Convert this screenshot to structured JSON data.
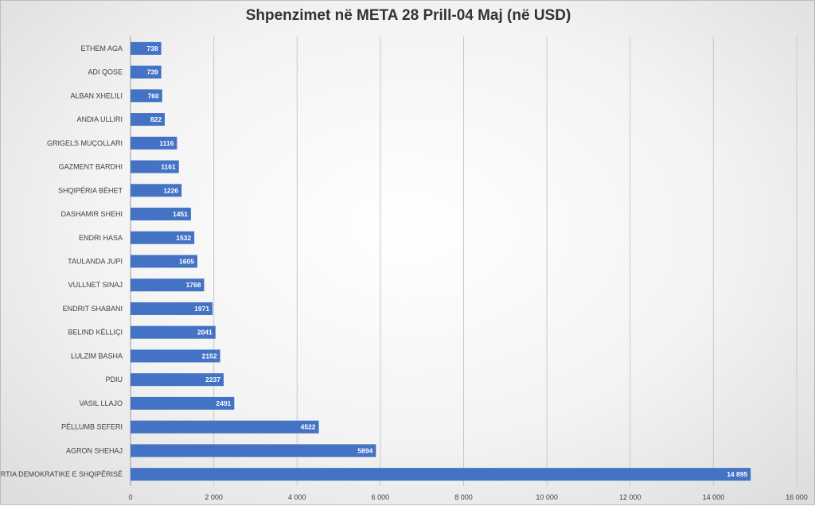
{
  "chart_data": {
    "type": "bar",
    "orientation": "horizontal",
    "title": "Shpenzimet në META 28 Prill-04 Maj (në USD)",
    "categories": [
      "ETHEM AGA",
      "ADI QOSE",
      "ALBAN XHELILI",
      "ANDIA ULLIRI",
      "GRIGELS MUÇOLLARI",
      "GAZMENT BARDHI",
      "SHQIPËRIA BËHET",
      "DASHAMIR SHEHI",
      "ENDRI HASA",
      "TAULANDA JUPI",
      "VULLNET SINAJ",
      "ENDRIT SHABANI",
      "BELIND KËLLIÇI",
      "LULZIM BASHA",
      "PDIU",
      "VASIL LLAJO",
      "PËLLUMB SEFERI",
      "AGRON SHEHAJ",
      "PARTIA DEMOKRATIKE E SHQIPËRISË"
    ],
    "values": [
      738,
      739,
      760,
      822,
      1116,
      1161,
      1226,
      1451,
      1532,
      1605,
      1768,
      1971,
      2041,
      2152,
      2237,
      2491,
      4522,
      5894,
      14895
    ],
    "value_labels": [
      "738",
      "739",
      "760",
      "822",
      "1116",
      "1161",
      "1226",
      "1451",
      "1532",
      "1605",
      "1768",
      "1971",
      "2041",
      "2152",
      "2237",
      "2491",
      "4522",
      "5894",
      "14 895"
    ],
    "xlim": [
      0,
      16000
    ],
    "x_ticks": [
      0,
      2000,
      4000,
      6000,
      8000,
      10000,
      12000,
      14000,
      16000
    ],
    "x_tick_labels": [
      "0",
      "2 000",
      "4 000",
      "6 000",
      "8 000",
      "10 000",
      "12 000",
      "14 000",
      "16 000"
    ],
    "grid": "vertical",
    "bar_color": "#4472C4",
    "grid_color": "#c8c8c8"
  }
}
